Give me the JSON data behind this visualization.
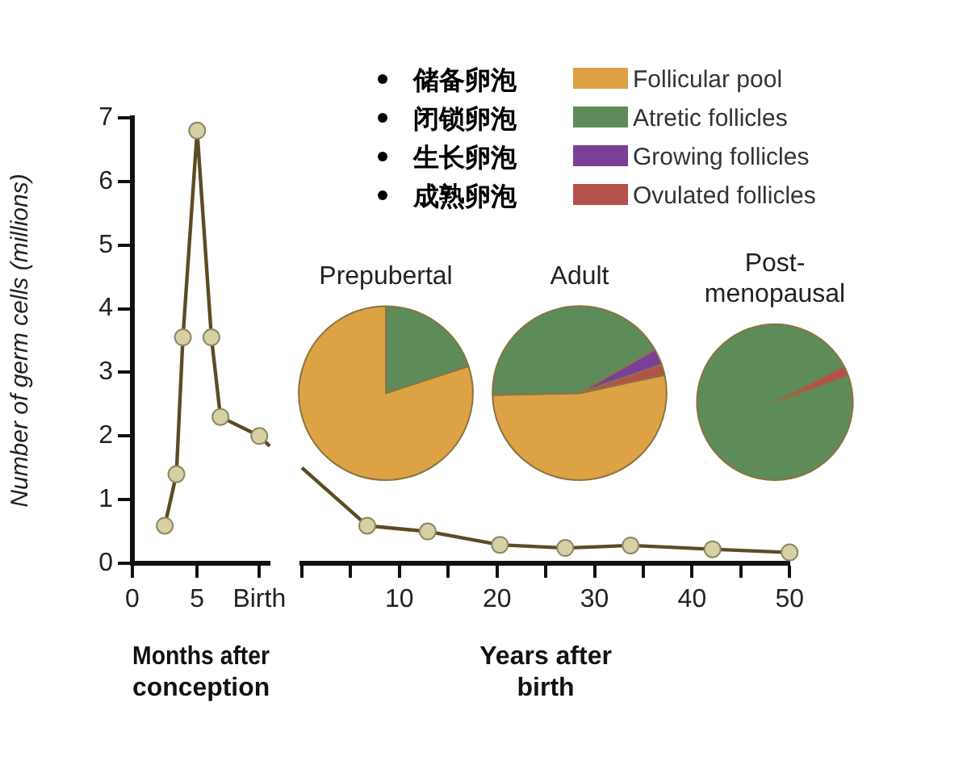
{
  "chart_data": [
    {
      "type": "other",
      "annotations": [
        "储备卵泡",
        "闭锁卵泡",
        "生长卵泡",
        "成熟卵泡"
      ]
    },
    {
      "type": "line",
      "xlabel": "Months after conception",
      "ylabel": "Number of germ cells (millions)",
      "xlim": [
        0,
        10.6
      ],
      "xticks": [
        0,
        5,
        {
          "value": 9.8,
          "label": "Birth"
        }
      ],
      "ylim": [
        0,
        7
      ],
      "yticks": [
        0,
        1,
        2,
        3,
        4,
        5,
        6,
        7
      ],
      "marker": "circle",
      "series": [
        {
          "color": "#5b4c23",
          "x": [
            2.5,
            3.4,
            3.9,
            5,
            6.1,
            6.8,
            9.8
          ],
          "values": [
            0.59,
            1.4,
            3.55,
            6.8,
            3.55,
            2.3,
            2.0
          ]
        },
        {
          "color": "#5b4c23",
          "marker": "none",
          "x": [
            9.8,
            10.6
          ],
          "values": [
            2.0,
            1.84
          ]
        }
      ]
    },
    {
      "type": "line",
      "xlabel": "Years after birth",
      "xlim": [
        0,
        50
      ],
      "xticks": [
        {
          "value": 0,
          "label": null
        },
        {
          "value": 5,
          "label": null
        },
        10,
        {
          "value": 15,
          "label": null
        },
        20,
        {
          "value": 25,
          "label": null
        },
        30,
        {
          "value": 35,
          "label": null
        },
        40,
        {
          "value": 45,
          "label": null
        },
        50
      ],
      "ylim": [
        0,
        7
      ],
      "tick_labels": "x",
      "marker": "circle",
      "series": [
        {
          "color": "#5b4c23",
          "x": [
            6.7,
            12.9,
            20.3,
            27,
            33.7,
            42.1,
            50
          ],
          "values": [
            0.59,
            0.5,
            0.29,
            0.24,
            0.28,
            0.22,
            0.17
          ]
        },
        {
          "color": "#5b4c23",
          "marker": "none",
          "x": [
            0,
            6.7
          ],
          "values": [
            1.5,
            0.59
          ]
        }
      ]
    },
    {
      "type": "pie",
      "title": "Prepubertal",
      "legend": "top",
      "categories": [
        "Follicular pool",
        "Atretic follicles",
        "Growing follicles",
        "Ovulated follicles"
      ],
      "colors": [
        "#dca244",
        "#5e8b5a",
        "#7a3f98",
        "#b5504a"
      ],
      "values": [
        80,
        20,
        0,
        0
      ]
    },
    {
      "type": "pie",
      "title": "Adult",
      "categories": [
        null,
        null,
        null,
        null
      ],
      "colors": [
        "#dca244",
        "#5e8b5a",
        "#7a3f98",
        "#b5504a"
      ],
      "values": [
        53,
        42,
        3,
        2
      ]
    },
    {
      "type": "pie",
      "title": "Post-\nmenopausal",
      "categories": [
        null,
        null,
        null,
        null
      ],
      "colors": [
        "#dca244",
        "#5e8b5a",
        "#7a3f98",
        "#b5504a"
      ],
      "values": [
        0,
        98,
        0,
        2
      ]
    }
  ]
}
